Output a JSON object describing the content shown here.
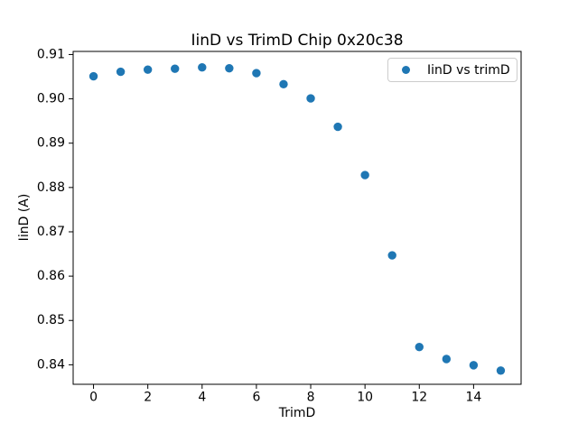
{
  "chart_data": {
    "type": "scatter",
    "title": "IinD vs TrimD Chip 0x20c38",
    "xlabel": "TrimD",
    "ylabel": "IinD (A)",
    "legend": [
      {
        "label": "IinD vs trimD",
        "marker": "circle",
        "color": "#1f77b4"
      }
    ],
    "legend_position": "upper right",
    "x": [
      0,
      1,
      2,
      3,
      4,
      5,
      6,
      7,
      8,
      9,
      10,
      11,
      12,
      13,
      14,
      15
    ],
    "y": [
      0.9051,
      0.9061,
      0.9066,
      0.9068,
      0.9071,
      0.9069,
      0.9058,
      0.9033,
      0.9001,
      0.8937,
      0.8828,
      0.8647,
      0.844,
      0.8413,
      0.8399,
      0.8387
    ],
    "xticks": [
      0,
      2,
      4,
      6,
      8,
      10,
      12,
      14
    ],
    "yticks": [
      0.84,
      0.85,
      0.86,
      0.87,
      0.88,
      0.89,
      0.9,
      0.91
    ],
    "xlim": [
      -0.75,
      15.75
    ],
    "ylim": [
      0.8356,
      0.9107
    ],
    "grid": false,
    "marker_color": "#1f77b4",
    "background_color": "#ffffff",
    "axis_color": "#000000"
  }
}
